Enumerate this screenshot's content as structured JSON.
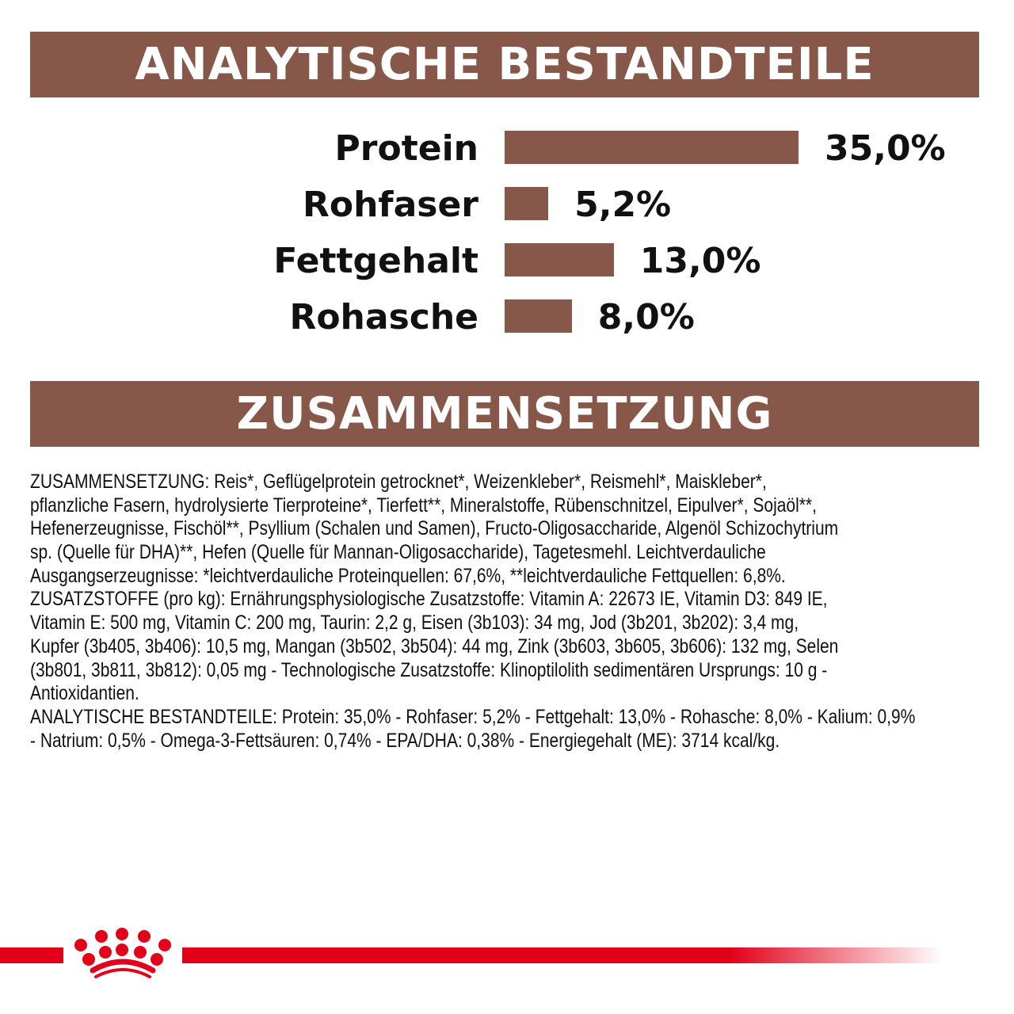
{
  "header1": "ANALYTISCHE BESTANDTEILE",
  "header2": "ZUSAMMENSETZUNG",
  "colors": {
    "band": "#87574a",
    "bar": "#87574a",
    "brand_red": "#e2001a"
  },
  "chart_data": {
    "type": "bar",
    "orientation": "horizontal",
    "categories": [
      "Protein",
      "Rohfaser",
      "Fettgehalt",
      "Rohasche"
    ],
    "values": [
      35.0,
      5.2,
      13.0,
      8.0
    ],
    "data_labels": [
      "35,0%",
      "5,2%",
      "13,0%",
      "8,0%"
    ],
    "unit": "%",
    "grid": false
  },
  "composition_lines": [
    "ZUSAMMENSETZUNG: Reis*, Geflügelprotein getrocknet*, Weizenkleber*, Reismehl*, Maiskleber*,",
    "pflanzliche Fasern, hydrolysierte Tierproteine*, Tierfett**, Mineralstoffe, Rübenschnitzel, Eipulver*, Sojaöl**,",
    "Hefenerzeugnisse, Fischöl**, Psyllium (Schalen und Samen), Fructo-Oligosaccharide, Algenöl Schizochytrium",
    "sp. (Quelle für DHA)**, Hefen (Quelle für Mannan-Oligosaccharide), Tagetesmehl. Leichtverdauliche",
    "Ausgangserzeugnisse: *leichtverdauliche Proteinquellen: 67,6%, **leichtverdauliche Fettquellen: 6,8%.",
    "ZUSATZSTOFFE (pro kg): Ernährungsphysiologische Zusatzstoffe: Vitamin A: 22673 IE, Vitamin D3: 849 IE,",
    "Vitamin E: 500 mg, Vitamin C: 200 mg, Taurin: 2,2 g, Eisen (3b103): 34 mg, Jod (3b201, 3b202): 3,4 mg,",
    "Kupfer (3b405, 3b406): 10,5 mg, Mangan (3b502, 3b504): 44 mg, Zink (3b603, 3b605, 3b606): 132 mg, Selen",
    "(3b801, 3b811, 3b812): 0,05 mg - Technologische Zusatzstoffe: Klinoptilolith sedimentären Ursprungs: 10 g -",
    "Antioxidantien.",
    "ANALYTISCHE BESTANDTEILE: Protein: 35,0% - Rohfaser: 5,2% - Fettgehalt: 13,0% - Rohasche: 8,0% - Kalium: 0,9%",
    "- Natrium: 0,5% - Omega-3-Fettsäuren: 0,74% - EPA/DHA: 0,38% - Energiegehalt (ME): 3714 kcal/kg."
  ],
  "logo": {
    "icon": "crown-icon"
  }
}
